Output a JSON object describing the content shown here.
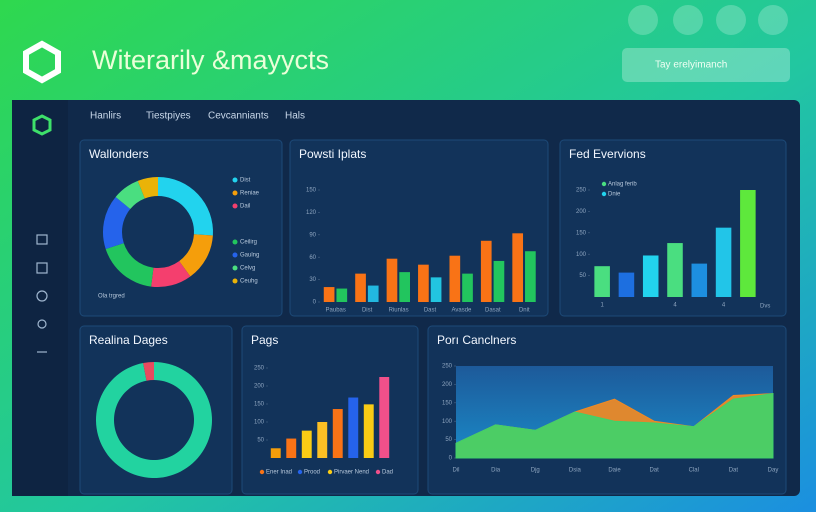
{
  "header": {
    "title": "Witerarily &mayycts",
    "search": "Tay erelyimanch"
  },
  "nav": [
    "Hanlirs",
    "Tiestpiyes",
    "Cevcanniants",
    "Hals"
  ],
  "chart_data": [
    {
      "type": "pie",
      "title": "Wallonders",
      "categories": [
        "Dist",
        "Reniae",
        "Dail",
        "Ceilirg",
        "Gaulng",
        "Celvg",
        "Ceuhg"
      ],
      "values": [
        26,
        14,
        12,
        18,
        16,
        8,
        6
      ],
      "colors": [
        "#22d3ee",
        "#f59e0b",
        "#f43f6e",
        "#22c55e",
        "#2563eb",
        "#4ade80",
        "#eab308"
      ],
      "note": "Ola trgred"
    },
    {
      "type": "bar",
      "title": "Powsti Iplats",
      "categories": [
        "Paubas",
        "Dist",
        "Riunlas",
        "Dast",
        "Avasde",
        "Dasat",
        "Dnit"
      ],
      "series": [
        {
          "color": "#f97316",
          "values": [
            20,
            38,
            58,
            50,
            62,
            82,
            92
          ]
        },
        {
          "color": "#22c55e",
          "colors": [
            "#22c55e",
            "#22b8e0",
            "#22c55e",
            "#22c5e0",
            "#22c55e",
            "#22c55e",
            "#22c55e"
          ],
          "values": [
            18,
            22,
            40,
            33,
            38,
            55,
            68
          ]
        }
      ],
      "ylim": [
        0,
        150
      ],
      "yticks": [
        0,
        30,
        60,
        90,
        120,
        150
      ],
      "grid": false
    },
    {
      "type": "bar",
      "title": "Fed Evervions",
      "categories": [
        "1",
        null,
        null,
        "4",
        null,
        "4",
        null
      ],
      "values": [
        72,
        57,
        97,
        126,
        78,
        162,
        250
      ],
      "colors": [
        "#4ade80",
        "#1d6fe0",
        "#22d3ee",
        "#4ade80",
        "#1d8fe0",
        "#22c5e8",
        "#5ee83c"
      ],
      "legend": [
        {
          "name": "Anlag ferib",
          "color": "#4ade80"
        },
        {
          "name": "Dnie",
          "color": "#22d3ee"
        }
      ],
      "xlabel": "Dvs",
      "ylim": [
        0,
        250
      ],
      "yticks": [
        50,
        100,
        150,
        200,
        250
      ],
      "grid": false
    },
    {
      "type": "pie",
      "title": "Realina Dages",
      "values": [
        97,
        3
      ],
      "colors": [
        "#22d3a0",
        "#e84a5f"
      ]
    },
    {
      "type": "bar",
      "title": "Pags",
      "categories": [
        null,
        null,
        null,
        null,
        null,
        null,
        null,
        null
      ],
      "values": [
        27,
        54,
        76,
        100,
        136,
        168,
        149,
        225
      ],
      "colors": [
        "#f59e0b",
        "#f97316",
        "#facc15",
        "#fbbf24",
        "#f97316",
        "#2563eb",
        "#facc15",
        "#f0508a"
      ],
      "legend": [
        {
          "name": "Ener Inad",
          "color": "#f97316"
        },
        {
          "name": "Prood",
          "color": "#2563eb"
        },
        {
          "name": "Pirvaer Nend",
          "color": "#facc15"
        },
        {
          "name": "Dad",
          "color": "#f0508a"
        }
      ],
      "ylim": [
        0,
        250
      ],
      "yticks": [
        50,
        100,
        150,
        200,
        250
      ],
      "grid": false
    },
    {
      "type": "area",
      "title": "Porı Canclners",
      "categories": [
        "Dil",
        "Dia",
        "Djg",
        "Dsia",
        "Daie",
        "Dat",
        "Clal",
        "Dat",
        "Day"
      ],
      "series": [
        {
          "color": "#f08a24",
          "values": [
            40,
            90,
            75,
            125,
            160,
            100,
            85,
            170,
            175
          ]
        },
        {
          "color": "#3fd26a",
          "values": [
            40,
            90,
            75,
            125,
            100,
            95,
            85,
            160,
            175
          ]
        }
      ],
      "ylim": [
        0,
        250
      ],
      "yticks": [
        0,
        50,
        100,
        150,
        200,
        250
      ],
      "grid": false
    }
  ]
}
